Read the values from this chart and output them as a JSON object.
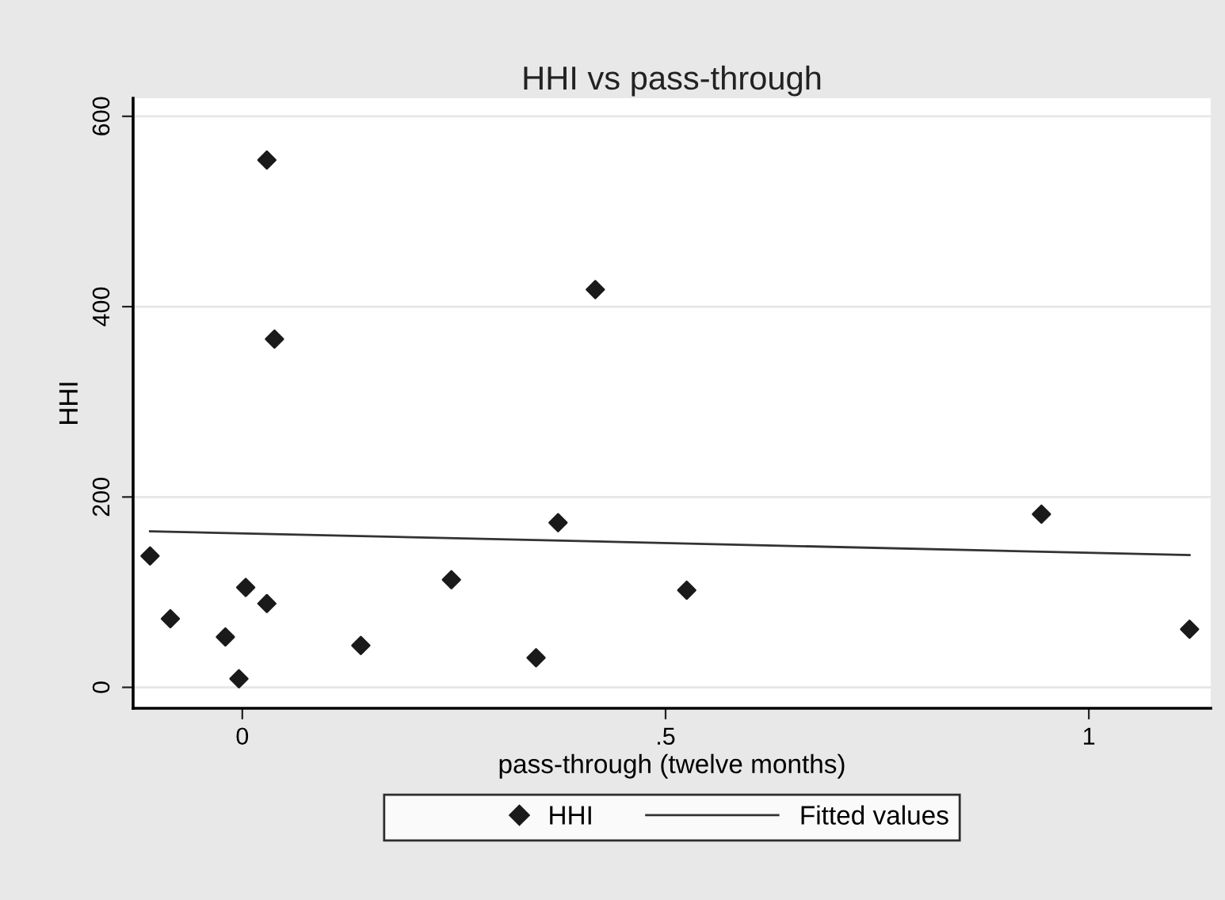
{
  "chart_data": {
    "type": "scatter",
    "title": "HHI vs pass-through",
    "xlabel": "pass-through (twelve months)",
    "ylabel": "HHI",
    "xlim": [
      -0.129,
      1.144
    ],
    "xticks": [
      0,
      {
        "value": 0.5,
        "label": ".5"
      },
      1
    ],
    "ylim": [
      -22,
      619
    ],
    "yticks": [
      0,
      200,
      400,
      600
    ],
    "grid": "y",
    "legend": "bottom",
    "series": [
      {
        "name": "HHI",
        "marker": "diamond",
        "color": "#1a1a1a",
        "x": [
          -0.109,
          -0.085,
          -0.02,
          -0.004,
          0.004,
          0.029,
          0.029,
          0.038,
          0.14,
          0.247,
          0.347,
          0.373,
          0.417,
          0.525,
          0.944,
          1.119
        ],
        "values": [
          138,
          72,
          53,
          9,
          105,
          554,
          88,
          366,
          44,
          113,
          31,
          173,
          418,
          102,
          182,
          61
        ]
      },
      {
        "name": "Fitted values",
        "type": "line",
        "marker": "none",
        "line_style": "solid",
        "color": "#333333",
        "x": [
          -0.109,
          1.119
        ],
        "values": [
          164,
          139
        ]
      }
    ]
  }
}
